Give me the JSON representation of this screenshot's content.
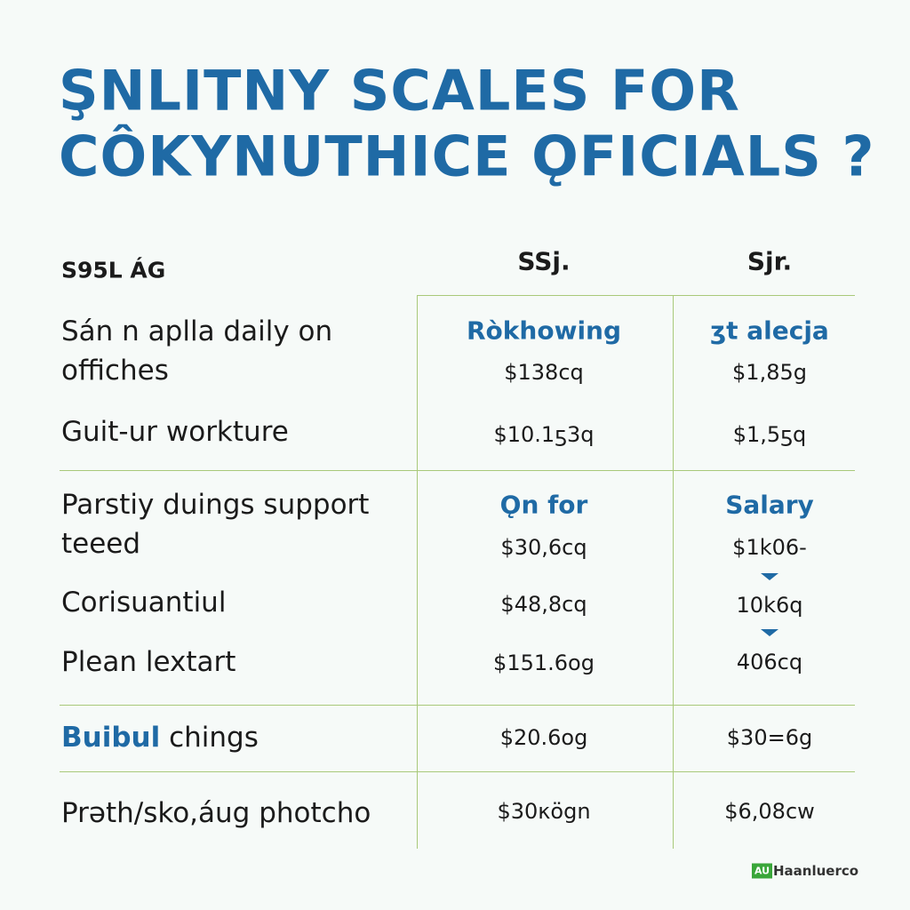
{
  "header": {
    "title": [
      "ŞNLITNY SCALES FOR",
      "CÔKYNUTHICE ǪFICIALS ?"
    ]
  },
  "table": {
    "row_header": "S95L ÁG",
    "columns": [
      "SSj.",
      "Sjr."
    ],
    "sections": [
      {
        "headings": [
          "Ròkhowing",
          "ʒt alecja"
        ],
        "rows": [
          {
            "label": [
              "Sán n aplla daily on",
              "offiches"
            ],
            "values": [
              "$138cq",
              "$1,85g"
            ]
          },
          {
            "label": [
              "Guit-ur workture"
            ],
            "values": [
              "$10.1ƽ3q",
              "$1,5ƽq"
            ]
          }
        ]
      },
      {
        "headings": [
          "Ǫn for",
          "Salary"
        ],
        "rows": [
          {
            "label": [
              "Parstiy duings support",
              "teeed"
            ],
            "values": [
              "$30,6cq",
              "$1k06-"
            ]
          },
          {
            "label": [
              "Corisuantiul"
            ],
            "values": [
              "$48,8cq",
              "10k6q"
            ]
          },
          {
            "label": [
              "Plean lextart"
            ],
            "values": [
              "$151.6og",
              "406cq"
            ]
          }
        ]
      },
      {
        "rows": [
          {
            "label": [
              "Buibul",
              "chings"
            ],
            "values": [
              "$20.6og",
              "$30=6g"
            ]
          }
        ]
      },
      {
        "rows": [
          {
            "label": [
              "Prǝth/sko,áug photcho"
            ],
            "values": [
              "$30κögn",
              "$6,08cw"
            ]
          }
        ]
      }
    ]
  },
  "footer": {
    "badge": "AU",
    "brand": "Haanluerco"
  }
}
